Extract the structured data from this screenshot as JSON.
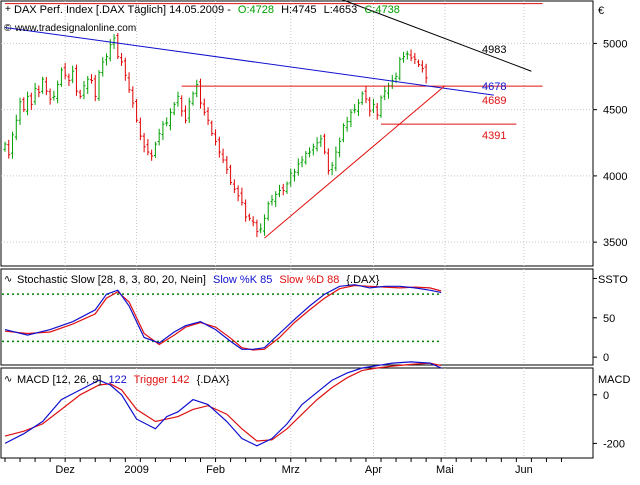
{
  "header": {
    "label": "DAX Perf. Index [.DAX Täglich] 14.05.2009 -",
    "open": "O:4728",
    "high": "H:4745",
    "low": "L:4653",
    "close": "C:4738"
  },
  "watermark": "www.tradesignalonline.com",
  "currency": "€",
  "colors": {
    "bull": "#00a000",
    "bear": "#e00000",
    "blue": "#1010d0",
    "red": "#e01010",
    "black": "#000000",
    "green_dot": "#008000"
  },
  "chart_data": [
    {
      "type": "candlestick",
      "name": "price",
      "ylim": [
        3320,
        5320
      ],
      "yticks": [
        3500,
        4000,
        4500,
        5000
      ],
      "x_labels": [
        {
          "label": "Dez",
          "i": 16
        },
        {
          "label": "2009",
          "i": 35
        },
        {
          "label": "Feb",
          "i": 56
        },
        {
          "label": "Mrz",
          "i": 76
        },
        {
          "label": "Apr",
          "i": 98
        },
        {
          "label": "Mai",
          "i": 117
        },
        {
          "label": "Jun",
          "i": 138
        }
      ],
      "closes": [
        4240,
        4160,
        4310,
        4420,
        4560,
        4500,
        4600,
        4540,
        4660,
        4630,
        4730,
        4640,
        4580,
        4600,
        4690,
        4800,
        4760,
        4720,
        4790,
        4640,
        4600,
        4680,
        4730,
        4720,
        4600,
        4780,
        4860,
        4900,
        4990,
        5040,
        4900,
        4860,
        4760,
        4650,
        4550,
        4420,
        4300,
        4220,
        4180,
        4150,
        4240,
        4320,
        4390,
        4400,
        4480,
        4540,
        4600,
        4490,
        4420,
        4560,
        4620,
        4690,
        4550,
        4480,
        4420,
        4320,
        4260,
        4180,
        4120,
        4050,
        3950,
        3900,
        3850,
        3800,
        3690,
        3680,
        3650,
        3580,
        3600,
        3680,
        3790,
        3820,
        3860,
        3890,
        3890,
        3940,
        4020,
        4030,
        4090,
        4120,
        4170,
        4180,
        4220,
        4250,
        4280,
        4180,
        4040,
        4080,
        4180,
        4260,
        4380,
        4410,
        4480,
        4500,
        4550,
        4620,
        4580,
        4490,
        4540,
        4460,
        4590,
        4640,
        4680,
        4720,
        4750,
        4880,
        4900,
        4920,
        4890,
        4880,
        4840,
        4810,
        4740
      ],
      "trendlines": [
        {
          "name": "blue-trendline",
          "color": "#1010d0",
          "x": [
            0,
            130
          ],
          "y": [
            5120,
            4610
          ]
        },
        {
          "name": "black-trendline",
          "color": "#000000",
          "x": [
            72,
            140
          ],
          "y": [
            5520,
            4790
          ]
        },
        {
          "name": "red-support-line",
          "color": "#e01010",
          "x": [
            69,
            117
          ],
          "y": [
            3530,
            4680
          ]
        }
      ],
      "hlines": [
        {
          "name": "hline-4983",
          "value": 4983,
          "label": "4983",
          "label_color": "#000000",
          "color": null,
          "x": [
            0,
            0
          ]
        },
        {
          "name": "hline-4678",
          "value": 4678,
          "label": "4678",
          "label_color": "#1010d0",
          "color": "#e01010",
          "x": [
            47,
            143
          ]
        },
        {
          "name": "hline-4689",
          "value": 4689,
          "label": "4689",
          "label_color": "#e01010",
          "color": null,
          "x": [
            0,
            0
          ]
        },
        {
          "name": "hline-4391",
          "value": 4391,
          "label": "4391",
          "label_color": "#e01010",
          "color": "#e01010",
          "x": [
            100,
            136
          ]
        },
        {
          "name": "hline-top",
          "value": 5300,
          "label": "",
          "label_color": "#e01010",
          "color": "#e01010",
          "x": [
            0,
            143
          ]
        }
      ]
    },
    {
      "type": "line",
      "name": "stochastic",
      "title": "Stochastic Slow [28, 8, 3, 80, 20, Nein]",
      "k_label": "Slow %K 85",
      "d_label": "Slow %D 88",
      "suffix": "{.DAX}",
      "ylim": [
        -10,
        112
      ],
      "yticks": [
        0,
        50
      ],
      "levels": [
        80,
        20
      ],
      "x": [
        0,
        6,
        12,
        18,
        24,
        27,
        30,
        33,
        37,
        41,
        45,
        48,
        52,
        56,
        60,
        63,
        66,
        69,
        73,
        77,
        81,
        85,
        89,
        93,
        97,
        101,
        105,
        109,
        113,
        116
      ],
      "k": [
        35,
        28,
        35,
        45,
        60,
        80,
        85,
        65,
        25,
        18,
        32,
        40,
        45,
        35,
        20,
        10,
        10,
        12,
        30,
        48,
        65,
        80,
        90,
        92,
        88,
        90,
        90,
        88,
        85,
        82
      ],
      "d": [
        33,
        30,
        32,
        42,
        55,
        75,
        83,
        70,
        30,
        16,
        28,
        38,
        44,
        38,
        24,
        12,
        9,
        10,
        25,
        44,
        60,
        75,
        87,
        91,
        90,
        89,
        88,
        89,
        88,
        84
      ]
    },
    {
      "type": "line",
      "name": "macd",
      "title": "MACD [12, 26, 9]",
      "macd_label": "122",
      "trigger_label": "Trigger 142",
      "suffix": "{.DAX}",
      "ylim": [
        -260,
        110
      ],
      "yticks": [
        0,
        -200
      ],
      "x": [
        0,
        5,
        10,
        15,
        20,
        25,
        28,
        31,
        35,
        40,
        43,
        46,
        50,
        54,
        59,
        63,
        67,
        71,
        75,
        79,
        83,
        87,
        91,
        95,
        99,
        103,
        108,
        113,
        116
      ],
      "macd": [
        -200,
        -160,
        -110,
        -20,
        20,
        60,
        40,
        0,
        -100,
        -140,
        -90,
        -70,
        -20,
        -40,
        -110,
        -180,
        -210,
        -180,
        -120,
        -40,
        10,
        60,
        90,
        110,
        120,
        130,
        135,
        130,
        110
      ],
      "trigger": [
        -170,
        -150,
        -120,
        -60,
        0,
        40,
        45,
        20,
        -60,
        -110,
        -100,
        -90,
        -60,
        -45,
        -80,
        -140,
        -190,
        -185,
        -140,
        -80,
        -20,
        30,
        70,
        100,
        110,
        118,
        125,
        130,
        120
      ]
    }
  ],
  "right_labels": {
    "stochastic": "SSTO",
    "macd": "MACD"
  }
}
